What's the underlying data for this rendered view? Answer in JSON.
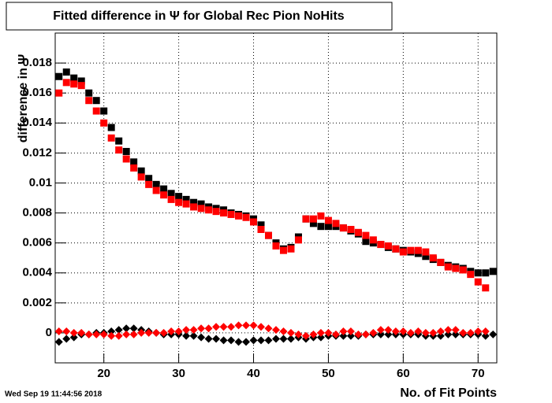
{
  "chart_data": {
    "type": "scatter",
    "title": "Fitted difference in  Ψ  for Global Rec Pion NoHits",
    "y_label": "difference in Ψ",
    "x_label": "No. of Fit Points",
    "timestamp": "Wed Sep 19 11:44:56 2018",
    "grid": true,
    "x": [
      14,
      15,
      16,
      17,
      18,
      19,
      20,
      21,
      22,
      23,
      24,
      25,
      26,
      27,
      28,
      29,
      30,
      31,
      32,
      33,
      34,
      35,
      36,
      37,
      38,
      39,
      40,
      41,
      42,
      43,
      44,
      45,
      46,
      47,
      48,
      49,
      50,
      51,
      52,
      53,
      54,
      55,
      56,
      57,
      58,
      59,
      60,
      61,
      62,
      63,
      64,
      65,
      66,
      67,
      68,
      69,
      70,
      71,
      72
    ],
    "xlim": [
      13.5,
      72.5
    ],
    "xticks": [
      20,
      30,
      40,
      50,
      60,
      70
    ],
    "ylim": [
      -0.002,
      0.02
    ],
    "yticks": [
      0,
      0.002,
      0.004,
      0.006,
      0.008,
      0.01,
      0.012,
      0.014,
      0.016,
      0.018
    ],
    "series": [
      {
        "color": "#000000",
        "marker": "square",
        "values": [
          0.0171,
          0.0174,
          0.017,
          0.0168,
          0.016,
          0.0155,
          0.0148,
          0.0137,
          0.0128,
          0.0121,
          0.0114,
          0.0108,
          0.0103,
          0.0099,
          0.0096,
          0.0093,
          0.0091,
          0.0089,
          0.0087,
          0.0086,
          0.0084,
          0.0083,
          0.0082,
          0.008,
          0.0079,
          0.0078,
          0.0076,
          0.0072,
          0.0065,
          0.006,
          0.0056,
          0.0057,
          0.0064,
          0.0076,
          0.0073,
          0.0071,
          0.0071,
          0.0071,
          0.007,
          0.0068,
          0.0066,
          0.0061,
          0.006,
          0.0059,
          0.0057,
          0.0056,
          0.0055,
          0.0054,
          0.0053,
          0.0051,
          0.0049,
          0.0047,
          0.0045,
          0.0044,
          0.0043,
          0.0041,
          0.004,
          0.004,
          0.0041
        ]
      },
      {
        "color": "#ff0000",
        "marker": "square",
        "values": [
          0.016,
          0.0167,
          0.0166,
          0.0165,
          0.0155,
          0.0148,
          0.014,
          0.013,
          0.0122,
          0.0116,
          0.011,
          0.0104,
          0.0099,
          0.0095,
          0.0092,
          0.0089,
          0.0087,
          0.0086,
          0.0084,
          0.0083,
          0.0082,
          0.0081,
          0.008,
          0.0079,
          0.0078,
          0.0077,
          0.0074,
          0.0069,
          0.0065,
          0.0058,
          0.0055,
          0.0056,
          0.0062,
          0.0076,
          0.0076,
          0.0078,
          0.0075,
          0.0073,
          0.007,
          0.0069,
          0.0067,
          0.0065,
          0.0062,
          0.0059,
          0.0058,
          0.0056,
          0.0054,
          0.0055,
          0.0055,
          0.0054,
          0.005,
          0.0047,
          0.0044,
          0.0043,
          0.0042,
          0.0039,
          0.0034,
          0.003,
          null
        ]
      },
      {
        "color": "#000000",
        "marker": "diamond",
        "values": [
          -0.0006,
          -0.0004,
          -0.0003,
          -0.0001,
          -0.0001,
          0,
          0,
          0.0001,
          0.0002,
          0.0003,
          0.0003,
          0.0002,
          0.0001,
          0,
          -0.0001,
          -0.0001,
          -0.0001,
          -0.0002,
          -0.0002,
          -0.0003,
          -0.0004,
          -0.0004,
          -0.0005,
          -0.0005,
          -0.0006,
          -0.0006,
          -0.0005,
          -0.0005,
          -0.0005,
          -0.0004,
          -0.0004,
          -0.0004,
          -0.0003,
          -0.0004,
          -0.0003,
          -0.0003,
          -0.0002,
          -0.0002,
          -0.0002,
          -0.0002,
          -0.0002,
          -0.0001,
          -0.0001,
          -0.0001,
          -0.0001,
          -0.0001,
          -0.0001,
          -0.0001,
          -0.0001,
          -0.0002,
          -0.0002,
          -0.0002,
          -0.0001,
          -0.0001,
          -0.0001,
          -0.0001,
          -0.0001,
          -0.0002,
          -0.0001
        ]
      },
      {
        "color": "#ff0000",
        "marker": "diamond",
        "values": [
          0.0001,
          0.0001,
          0,
          0,
          -0.0001,
          -0.0001,
          -0.0001,
          -0.0002,
          -0.0002,
          -0.0001,
          -0.0001,
          0,
          0,
          0,
          0,
          0.0001,
          0.0001,
          0.0002,
          0.0002,
          0.0003,
          0.0003,
          0.0004,
          0.0004,
          0.0004,
          0.0005,
          0.0005,
          0.0005,
          0.0004,
          0.0003,
          0.0002,
          0.0001,
          0,
          -0.0001,
          -0.0002,
          -0.0001,
          0,
          0,
          -0.0001,
          0.0001,
          0.0001,
          -0.0001,
          -0.0001,
          0,
          0.0002,
          0.0002,
          0.0001,
          0.0001,
          0,
          0.0001,
          0,
          0,
          0.0001,
          0.0002,
          0.0002,
          0,
          0,
          0.0001,
          0.0001,
          null
        ]
      }
    ]
  }
}
